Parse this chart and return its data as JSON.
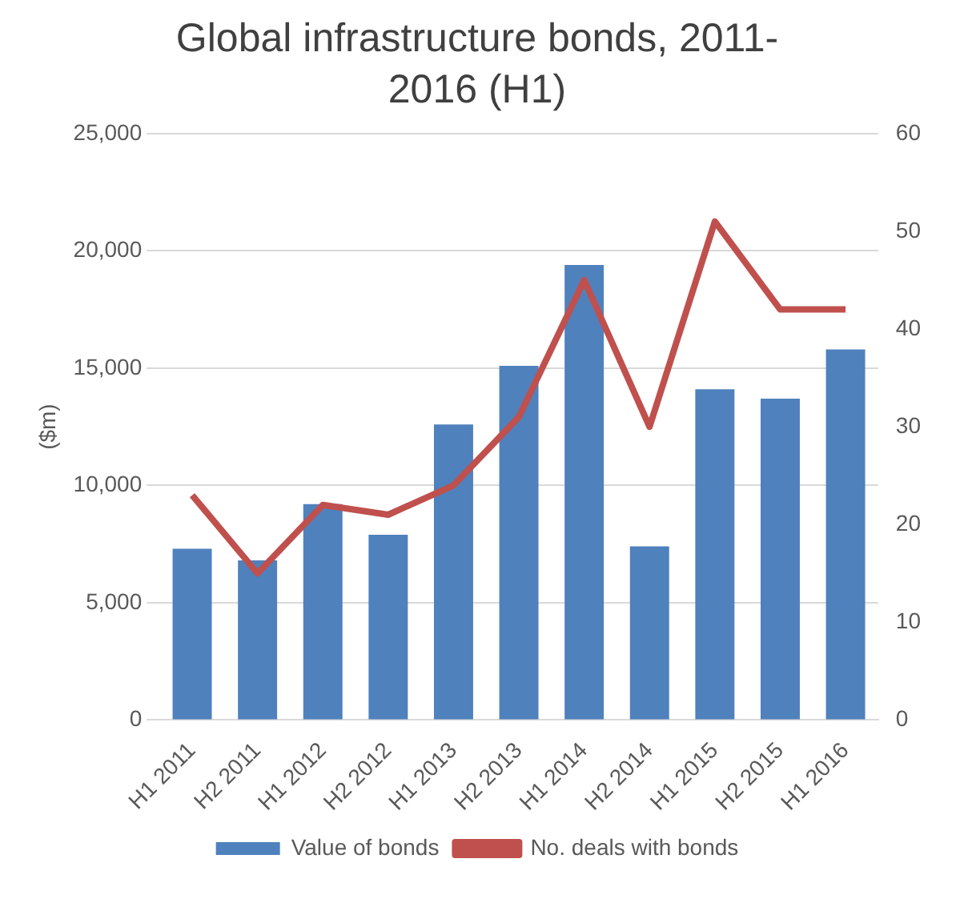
{
  "chart_data": {
    "type": "bar",
    "title": "Global infrastructure bonds, 2011-2016 (H1)",
    "ylabel": "($m)",
    "categories": [
      "H1 2011",
      "H2 2011",
      "H1 2012",
      "H2 2012",
      "H1 2013",
      "H2 2013",
      "H1 2014",
      "H2 2014",
      "H1 2015",
      "H2 2015",
      "H1 2016"
    ],
    "series": [
      {
        "name": "Value of bonds",
        "color": "#4f81bd",
        "values": [
          7300,
          6800,
          9200,
          7900,
          12600,
          15100,
          19400,
          7400,
          14100,
          13700,
          15800
        ]
      },
      {
        "name": "No. deals with bonds",
        "type": "line",
        "axis": "y2",
        "color": "#c0504d",
        "values": [
          23,
          15,
          22,
          21,
          24,
          31,
          45,
          30,
          51,
          42,
          42
        ]
      }
    ],
    "ylim": [
      0,
      25000
    ],
    "yticks": [
      0,
      {
        "value": 5000,
        "label": "5,000"
      },
      {
        "value": 10000,
        "label": "10,000"
      },
      {
        "value": 15000,
        "label": "15,000"
      },
      {
        "value": 20000,
        "label": "20,000"
      },
      {
        "value": 25000,
        "label": "25,000"
      }
    ],
    "y2lim": [
      0,
      60
    ],
    "y2ticks": [
      0,
      10,
      20,
      30,
      40,
      50,
      60
    ],
    "grid": "y",
    "legend": "bottom",
    "marker": "none"
  }
}
